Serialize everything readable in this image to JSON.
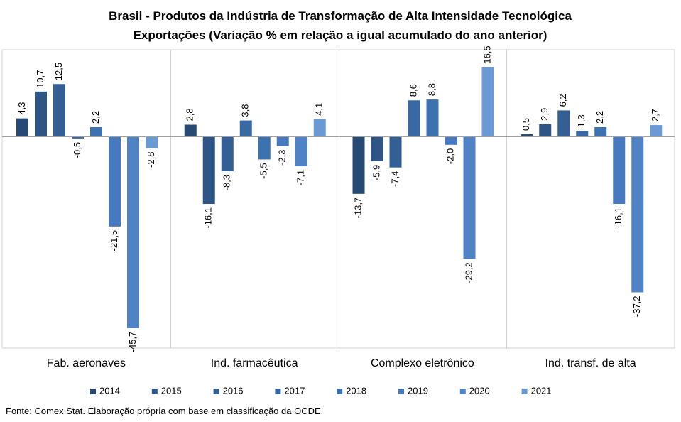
{
  "chart_data": {
    "type": "bar",
    "title": "Brasil - Produtos da Indústria de Transformação  de Alta Intensidade Tecnológica",
    "subtitle": "Exportações (Variação % em relação a igual acumulado do ano anterior)",
    "categories": [
      "Fab. aeronaves",
      "Ind. farmacêutica",
      "Complexo eletrônico",
      "Ind. transf. de alta"
    ],
    "series": [
      {
        "name": "2014",
        "color": "#264a73",
        "values": [
          4.3,
          2.8,
          -13.7,
          0.5
        ],
        "labels": [
          "4,3",
          "2,8",
          "-13,7",
          "0,5"
        ]
      },
      {
        "name": "2015",
        "color": "#2d5585",
        "values": [
          10.7,
          -16.1,
          -5.9,
          2.9
        ],
        "labels": [
          "10,7",
          "-16,1",
          "-5,9",
          "2,9"
        ]
      },
      {
        "name": "2016",
        "color": "#335f94",
        "values": [
          12.5,
          -8.3,
          -7.4,
          6.2
        ],
        "labels": [
          "12,5",
          "-8,3",
          "-7,4",
          "6,2"
        ]
      },
      {
        "name": "2017",
        "color": "#3869a3",
        "values": [
          -0.5,
          3.8,
          8.6,
          1.3
        ],
        "labels": [
          "-0,5",
          "3,8",
          "8,6",
          "1,3"
        ]
      },
      {
        "name": "2018",
        "color": "#3c72b0",
        "values": [
          2.2,
          -5.5,
          8.8,
          2.2
        ],
        "labels": [
          "2,2",
          "-5,5",
          "8,8",
          "2,2"
        ]
      },
      {
        "name": "2019",
        "color": "#4679bf",
        "values": [
          -21.5,
          -2.3,
          -2.0,
          -16.1
        ],
        "labels": [
          "-21,5",
          "-2,3",
          "-2,0",
          "-16,1"
        ]
      },
      {
        "name": "2020",
        "color": "#4f83c6",
        "values": [
          -45.7,
          -7.1,
          -29.2,
          -37.2
        ],
        "labels": [
          "-45,7",
          "-7,1",
          "-29,2",
          "-37,2"
        ]
      },
      {
        "name": "2021",
        "color": "#6a9ad3",
        "values": [
          -2.8,
          4.1,
          16.5,
          2.7
        ],
        "labels": [
          "-2,8",
          "4,1",
          "16,5",
          "2,7"
        ]
      }
    ],
    "ylim": [
      -49,
      21
    ],
    "grid": false,
    "legend": "bottom"
  },
  "source": "Fonte: Comex Stat. Elaboração própria com base em classificação da OCDE."
}
